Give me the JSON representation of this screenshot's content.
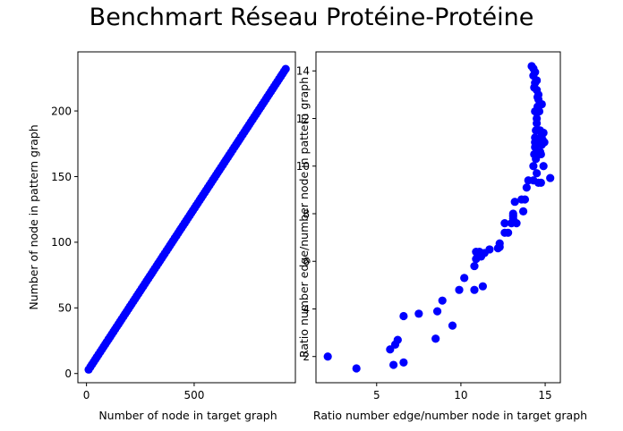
{
  "suptitle": "Benchmart Réseau Protéine-Protéine",
  "colors": {
    "marker": "#0000ff",
    "axis": "#000000",
    "background": "#ffffff"
  },
  "chart_data": [
    {
      "type": "scatter",
      "title": "",
      "xlabel": "Number of node in target graph",
      "ylabel": "Number of node in pattern graph",
      "xlim": [
        -40,
        970
      ],
      "ylim": [
        -7,
        245
      ],
      "xticks": [
        0,
        500
      ],
      "yticks": [
        0,
        50,
        100,
        150,
        200
      ],
      "grid": false,
      "legend": "none",
      "series": [
        {
          "x_range": [
            10,
            925
          ],
          "y_range": [
            3,
            232
          ],
          "count": 120,
          "relation": "linear"
        }
      ]
    },
    {
      "type": "scatter",
      "title": "",
      "xlabel": "Ratio number edge/number node  in target graph",
      "ylabel": "Ratio number edge/number node in pattern graph",
      "xlim": [
        1.4,
        15.9
      ],
      "ylim": [
        0.9,
        14.8
      ],
      "xticks": [
        5,
        10,
        15
      ],
      "yticks": [
        2,
        4,
        6,
        8,
        10,
        12,
        14
      ],
      "grid": false,
      "legend": "none",
      "series": [
        {
          "points": [
            [
              2.1,
              2.0
            ],
            [
              3.8,
              1.5
            ],
            [
              5.8,
              2.3
            ],
            [
              6.0,
              1.65
            ],
            [
              6.1,
              2.5
            ],
            [
              6.25,
              2.7
            ],
            [
              6.6,
              1.75
            ],
            [
              6.6,
              3.7
            ],
            [
              7.5,
              3.8
            ],
            [
              8.5,
              2.75
            ],
            [
              8.6,
              3.9
            ],
            [
              8.9,
              4.35
            ],
            [
              9.5,
              3.3
            ],
            [
              9.9,
              4.8
            ],
            [
              10.2,
              5.3
            ],
            [
              10.8,
              4.8
            ],
            [
              10.8,
              5.8
            ],
            [
              10.9,
              6.1
            ],
            [
              10.9,
              6.4
            ],
            [
              11.0,
              6.25
            ],
            [
              11.1,
              6.4
            ],
            [
              11.2,
              6.2
            ],
            [
              11.3,
              4.95
            ],
            [
              11.4,
              6.35
            ],
            [
              11.7,
              6.5
            ],
            [
              12.2,
              6.55
            ],
            [
              12.3,
              6.75
            ],
            [
              12.3,
              6.6
            ],
            [
              12.6,
              7.2
            ],
            [
              12.6,
              7.6
            ],
            [
              12.8,
              7.2
            ],
            [
              13.0,
              7.6
            ],
            [
              13.1,
              7.8
            ],
            [
              13.1,
              8.0
            ],
            [
              13.1,
              7.9
            ],
            [
              13.3,
              7.6
            ],
            [
              13.2,
              8.5
            ],
            [
              13.6,
              8.6
            ],
            [
              13.7,
              8.1
            ],
            [
              13.8,
              8.6
            ],
            [
              13.9,
              9.1
            ],
            [
              14.0,
              9.4
            ],
            [
              14.3,
              9.4
            ],
            [
              14.3,
              10.0
            ],
            [
              14.35,
              10.5
            ],
            [
              14.4,
              10.8
            ],
            [
              14.4,
              11.0
            ],
            [
              14.4,
              11.2
            ],
            [
              14.45,
              11.5
            ],
            [
              14.5,
              11.8
            ],
            [
              14.5,
              12.0
            ],
            [
              14.55,
              12.5
            ],
            [
              14.6,
              12.8
            ],
            [
              14.6,
              13.0
            ],
            [
              14.5,
              13.2
            ],
            [
              14.4,
              13.5
            ],
            [
              14.3,
              13.8
            ],
            [
              14.2,
              14.2
            ],
            [
              14.3,
              14.1
            ],
            [
              14.4,
              13.95
            ],
            [
              14.5,
              13.6
            ],
            [
              14.55,
              12.9
            ],
            [
              14.65,
              12.3
            ],
            [
              14.7,
              12.6
            ],
            [
              14.7,
              11.5
            ],
            [
              14.7,
              11.0
            ],
            [
              14.75,
              10.5
            ],
            [
              14.8,
              11.3
            ],
            [
              14.8,
              10.9
            ],
            [
              14.85,
              11.1
            ],
            [
              14.9,
              11.4
            ],
            [
              14.9,
              10.0
            ],
            [
              14.75,
              9.3
            ],
            [
              14.6,
              9.3
            ],
            [
              14.5,
              9.7
            ],
            [
              14.7,
              10.6
            ],
            [
              14.8,
              12.6
            ],
            [
              14.4,
              12.3
            ],
            [
              15.3,
              9.5
            ],
            [
              14.95,
              11.0
            ],
            [
              14.35,
              13.3
            ],
            [
              14.45,
              10.3
            ]
          ]
        }
      ]
    }
  ]
}
